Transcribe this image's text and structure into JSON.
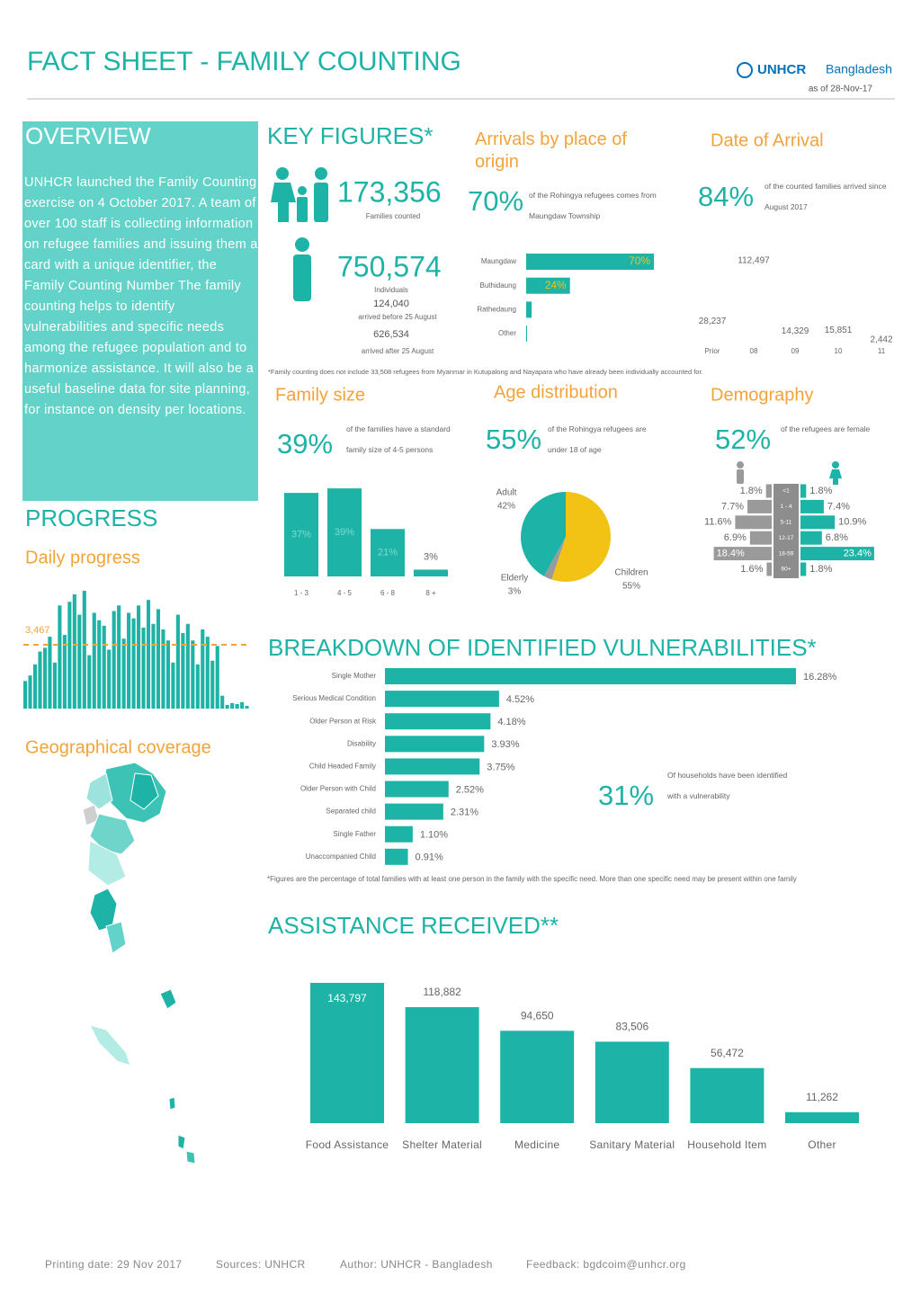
{
  "header": {
    "title": "FACT SHEET - FAMILY COUNTING",
    "logo": "UNHCR",
    "country": "Bangladesh",
    "date": "as of 28-Nov-17"
  },
  "overview": {
    "heading": "OVERVIEW",
    "text": "UNHCR launched the Family Counting exercise on 4 October 2017. A team of over 100 staff is collecting information on refugee families and issuing them a card with a unique identifier, the Family Counting Number The family counting helps to identify vulnerabilities and specific needs among the refugee population and to harmonize assistance. It will also be a useful baseline data for site planning, for instance on density per locations."
  },
  "key_figures": {
    "heading": "KEY FIGURES*",
    "families": "173,356",
    "families_label": "Families counted",
    "individuals": "750,574",
    "individuals_label": "Individuals",
    "before": "124,040",
    "before_label": "arrived before 25 August",
    "after": "626,534",
    "after_label": "arrived after 25 August",
    "note": "*Family counting does not include 33,508 refugees from Myanmar in Kutupalong and Nayapara who have already been individually accounted for."
  },
  "arrivals_origin": {
    "type": "hbar",
    "title": "Arrivals by place of origin",
    "highlight": "70%",
    "highlight_text": "of the Rohingya refugees comes from Maungdaw Township",
    "categories": [
      "Maungdaw",
      "Buthidaung",
      "Rathedaung",
      "Other"
    ],
    "values": [
      70,
      24,
      3,
      0.5
    ],
    "value_labels": [
      "70%",
      "24%",
      null,
      null
    ],
    "color": "#1db3a6",
    "label_color": "#f2c314"
  },
  "arrival_date": {
    "type": "bar",
    "title": "Date of Arrival",
    "highlight": "84%",
    "highlight_text": "of the counted families arrived since August 2017",
    "categories": [
      "Prior",
      "08",
      "09",
      "10",
      "11"
    ],
    "values": [
      28237,
      112497,
      14329,
      15851,
      2442
    ],
    "value_labels": [
      "28,237",
      "112,497",
      "14,329",
      "15,851",
      "2,442"
    ],
    "color": "#ffffff"
  },
  "family_size": {
    "type": "bar",
    "title": "Family size",
    "highlight": "39%",
    "highlight_text": "of the families have a standard family size of 4-5 persons",
    "categories": [
      "1 - 3",
      "4 - 5",
      "6 - 8",
      "8 +"
    ],
    "values": [
      37,
      39,
      21,
      3
    ],
    "value_labels": [
      "37%",
      "39%",
      "21%",
      "3%"
    ],
    "color": "#1db3a6"
  },
  "age_distribution": {
    "type": "pie",
    "title": "Age distribution",
    "highlight": "55%",
    "highlight_text": "of the Rohingya refugees are under 18 of age",
    "categories": [
      "Adult",
      "Elderly",
      "Children"
    ],
    "values": [
      42,
      3,
      55
    ],
    "value_labels": [
      "42%",
      "3%",
      "55%"
    ],
    "colors": [
      "#1db3a6",
      "#9a9a9a",
      "#f2c314"
    ]
  },
  "demography": {
    "type": "pyramid",
    "title": "Demography",
    "highlight": "52%",
    "highlight_text": "of the refugees are female",
    "categories": [
      "<1",
      "1 - 4",
      "5-11",
      "12-17",
      "18-59",
      "60+"
    ],
    "series": [
      {
        "color": "#9a9a9a",
        "values": [
          1.8,
          7.7,
          11.6,
          6.9,
          18.4,
          1.6
        ],
        "value_labels": [
          "1.8%",
          "7.7%",
          "11.6%",
          "6.9%",
          "18.4%",
          "1.6%"
        ]
      },
      {
        "color": "#1db3a6",
        "values": [
          1.8,
          7.4,
          10.9,
          6.8,
          23.4,
          1.8
        ],
        "value_labels": [
          "1.8%",
          "7.4%",
          "10.9%",
          "6.8%",
          "23.4%",
          "1.8%"
        ]
      }
    ]
  },
  "progress": {
    "heading": "PROGRESS",
    "subtitle": "Daily progress",
    "type": "bar",
    "color": "#1db3a6",
    "average": {
      "value": 3467,
      "label": "3,467"
    },
    "average_color": "#f2a33a",
    "values": [
      1500,
      1800,
      2400,
      3100,
      3300,
      3900,
      2500,
      5600,
      4000,
      5800,
      6200,
      5100,
      6400,
      2900,
      5200,
      4800,
      4500,
      3200,
      5300,
      5600,
      3800,
      5200,
      4900,
      5600,
      4400,
      5900,
      4600,
      5400,
      4300,
      3700,
      2500,
      5100,
      4100,
      4600,
      3700,
      2400,
      4300,
      3900,
      2600,
      3400,
      700,
      200,
      300,
      250,
      350,
      150
    ]
  },
  "geographical_coverage": {
    "title": "Geographical coverage"
  },
  "vulnerabilities": {
    "type": "hbar",
    "heading": "BREAKDOWN OF IDENTIFIED VULNERABILITIES*",
    "highlight": "31%",
    "highlight_text": "Of households have been identified with a vulnerability",
    "categories": [
      "Single Mother",
      "Serious Medical Condition",
      "Older Person at Risk",
      "Disability",
      "Child Headed Family",
      "Older Person with Child",
      "Separated child",
      "Single Father",
      "Unaccompanied Child"
    ],
    "values": [
      16.28,
      4.52,
      4.18,
      3.93,
      3.75,
      2.52,
      2.31,
      1.1,
      0.91
    ],
    "value_labels": [
      "16.28%",
      "4.52%",
      "4.18%",
      "3.93%",
      "3.75%",
      "2.52%",
      "2.31%",
      "1.10%",
      "0.91%"
    ],
    "color": "#1db3a6",
    "note": "*Figures are the percentage of total families with at least one person in the family with the specific need. More than one specific need may be present within one family"
  },
  "assistance": {
    "type": "bar",
    "heading": "ASSISTANCE RECEIVED**",
    "categories": [
      "Food Assistance",
      "Shelter Material",
      "Medicine",
      "Sanitary Material",
      "Household Item",
      "Other"
    ],
    "values": [
      143797,
      118882,
      94650,
      83506,
      56472,
      11262
    ],
    "value_labels": [
      "143,797",
      "118,882",
      "94,650",
      "83,506",
      "56,472",
      "11,262"
    ],
    "color": "#1db3a6"
  },
  "footer": {
    "printing_date": "Printing date: 29 Nov 2017",
    "sources": "Sources: UNHCR",
    "author": "Author: UNHCR - Bangladesh",
    "feedback": "Feedback: bgdcoim@unhcr.org"
  }
}
